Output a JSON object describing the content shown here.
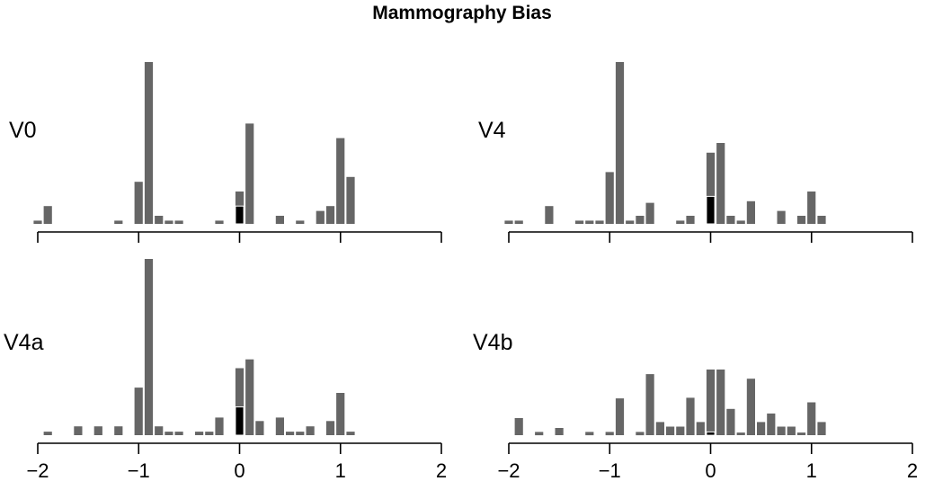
{
  "chart_data": {
    "type": "bar",
    "title": "Mammography Bias",
    "layout": "2x2",
    "bin_width": 0.1,
    "xlim": [
      -2,
      2
    ],
    "xticks": [
      -2,
      -1,
      0,
      1,
      2
    ],
    "xtick_labels": [
      "−2",
      "−1",
      "0",
      "1",
      "2"
    ],
    "colors": {
      "bar": "#666666",
      "highlight": "#000000",
      "axis": "#000000"
    },
    "panels": [
      {
        "label": "V0",
        "ymax": 1.0,
        "bars": [
          {
            "x": -2.0,
            "value": 0.02
          },
          {
            "x": -1.9,
            "value": 0.11
          },
          {
            "x": -1.2,
            "value": 0.02
          },
          {
            "x": -1.0,
            "value": 0.26
          },
          {
            "x": -0.9,
            "value": 1.0
          },
          {
            "x": -0.8,
            "value": 0.05
          },
          {
            "x": -0.7,
            "value": 0.02
          },
          {
            "x": -0.6,
            "value": 0.02
          },
          {
            "x": -0.2,
            "value": 0.02
          },
          {
            "x": 0.0,
            "value": 0.2,
            "highlight": 0.11
          },
          {
            "x": 0.1,
            "value": 0.62
          },
          {
            "x": 0.4,
            "value": 0.05
          },
          {
            "x": 0.6,
            "value": 0.02
          },
          {
            "x": 0.8,
            "value": 0.08
          },
          {
            "x": 0.9,
            "value": 0.11
          },
          {
            "x": 1.0,
            "value": 0.53
          },
          {
            "x": 1.1,
            "value": 0.29
          }
        ]
      },
      {
        "label": "V4",
        "ymax": 1.0,
        "bars": [
          {
            "x": -2.0,
            "value": 0.02
          },
          {
            "x": -1.9,
            "value": 0.02
          },
          {
            "x": -1.6,
            "value": 0.11
          },
          {
            "x": -1.3,
            "value": 0.02
          },
          {
            "x": -1.2,
            "value": 0.02
          },
          {
            "x": -1.1,
            "value": 0.02
          },
          {
            "x": -1.0,
            "value": 0.32
          },
          {
            "x": -0.9,
            "value": 1.0
          },
          {
            "x": -0.8,
            "value": 0.02
          },
          {
            "x": -0.7,
            "value": 0.05
          },
          {
            "x": -0.6,
            "value": 0.13
          },
          {
            "x": -0.3,
            "value": 0.02
          },
          {
            "x": -0.2,
            "value": 0.05
          },
          {
            "x": 0.0,
            "value": 0.44,
            "highlight": 0.17
          },
          {
            "x": 0.1,
            "value": 0.5
          },
          {
            "x": 0.2,
            "value": 0.05
          },
          {
            "x": 0.3,
            "value": 0.02
          },
          {
            "x": 0.4,
            "value": 0.14
          },
          {
            "x": 0.7,
            "value": 0.08
          },
          {
            "x": 0.9,
            "value": 0.05
          },
          {
            "x": 1.0,
            "value": 0.2
          },
          {
            "x": 1.1,
            "value": 0.05
          }
        ]
      },
      {
        "label": "V4a",
        "ymax": 1.0,
        "bars": [
          {
            "x": -1.9,
            "value": 0.02
          },
          {
            "x": -1.6,
            "value": 0.05
          },
          {
            "x": -1.4,
            "value": 0.05
          },
          {
            "x": -1.2,
            "value": 0.05
          },
          {
            "x": -1.0,
            "value": 0.27
          },
          {
            "x": -0.9,
            "value": 1.0
          },
          {
            "x": -0.8,
            "value": 0.05
          },
          {
            "x": -0.7,
            "value": 0.02
          },
          {
            "x": -0.6,
            "value": 0.02
          },
          {
            "x": -0.4,
            "value": 0.02
          },
          {
            "x": -0.3,
            "value": 0.02
          },
          {
            "x": -0.2,
            "value": 0.1
          },
          {
            "x": 0.0,
            "value": 0.38,
            "highlight": 0.16
          },
          {
            "x": 0.1,
            "value": 0.43
          },
          {
            "x": 0.2,
            "value": 0.08
          },
          {
            "x": 0.4,
            "value": 0.1
          },
          {
            "x": 0.5,
            "value": 0.02
          },
          {
            "x": 0.6,
            "value": 0.02
          },
          {
            "x": 0.7,
            "value": 0.05
          },
          {
            "x": 0.9,
            "value": 0.08
          },
          {
            "x": 1.0,
            "value": 0.24
          },
          {
            "x": 1.1,
            "value": 0.02
          }
        ]
      },
      {
        "label": "V4b",
        "ymax": 1.0,
        "bars": [
          {
            "x": -1.9,
            "value": 0.26
          },
          {
            "x": -1.7,
            "value": 0.05
          },
          {
            "x": -1.5,
            "value": 0.11
          },
          {
            "x": -1.2,
            "value": 0.05
          },
          {
            "x": -1.0,
            "value": 0.05
          },
          {
            "x": -0.9,
            "value": 0.56
          },
          {
            "x": -0.7,
            "value": 0.05
          },
          {
            "x": -0.6,
            "value": 0.93
          },
          {
            "x": -0.5,
            "value": 0.2
          },
          {
            "x": -0.4,
            "value": 0.13
          },
          {
            "x": -0.3,
            "value": 0.13
          },
          {
            "x": -0.2,
            "value": 0.57
          },
          {
            "x": -0.1,
            "value": 0.2
          },
          {
            "x": 0.0,
            "value": 1.0,
            "highlight": 0.05
          },
          {
            "x": 0.1,
            "value": 1.0
          },
          {
            "x": 0.2,
            "value": 0.4
          },
          {
            "x": 0.3,
            "value": 0.04
          },
          {
            "x": 0.4,
            "value": 0.86
          },
          {
            "x": 0.5,
            "value": 0.2
          },
          {
            "x": 0.6,
            "value": 0.33
          },
          {
            "x": 0.7,
            "value": 0.13
          },
          {
            "x": 0.8,
            "value": 0.13
          },
          {
            "x": 0.9,
            "value": 0.04
          },
          {
            "x": 1.0,
            "value": 0.5
          },
          {
            "x": 1.1,
            "value": 0.2
          }
        ]
      }
    ]
  }
}
